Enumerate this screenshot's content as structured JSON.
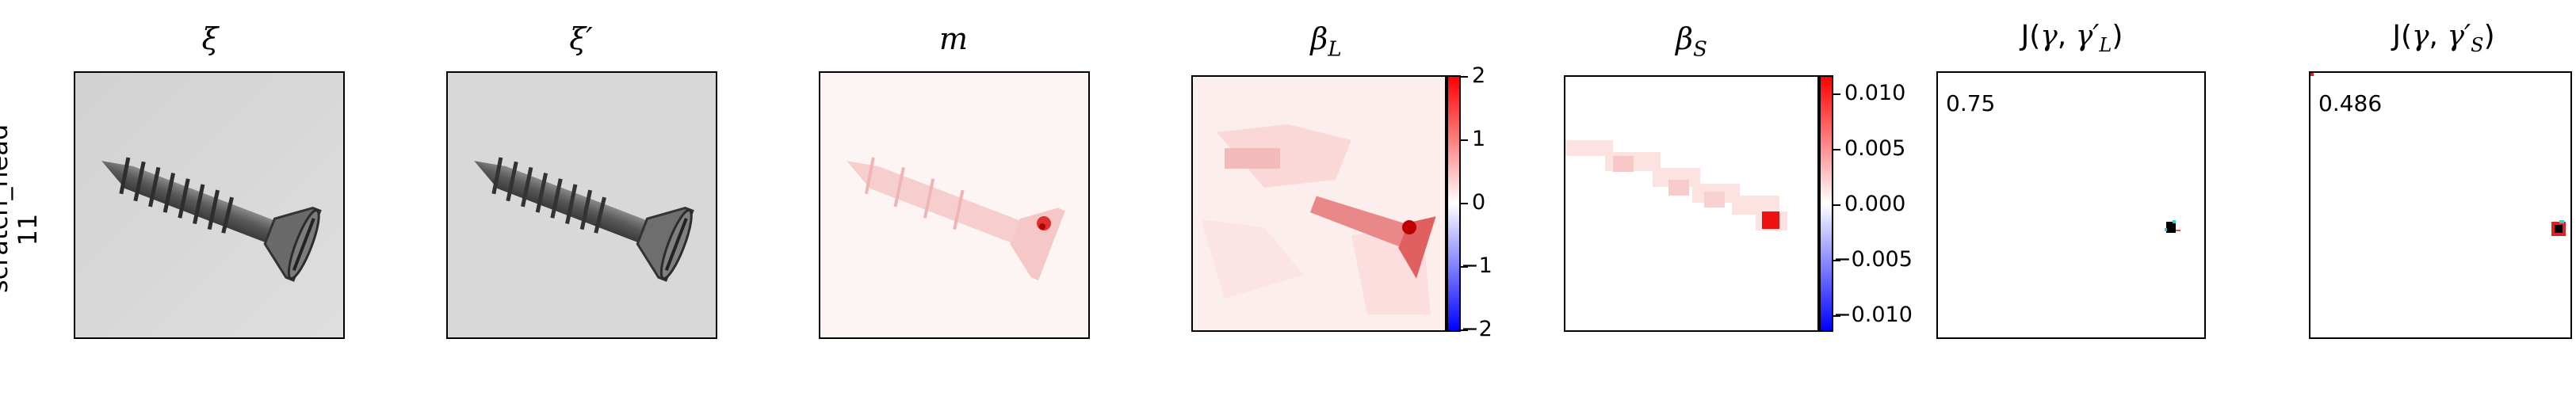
{
  "row_label": {
    "line1": "scratch_head",
    "line2": "11"
  },
  "panels": [
    {
      "title": "ξ"
    },
    {
      "title": "ξ′"
    },
    {
      "title": "m"
    },
    {
      "title": "β",
      "sub": "L",
      "colorbar": {
        "ticks": [
          "2",
          "1",
          "0",
          "−1",
          "−2"
        ],
        "max_color": "#ff0000",
        "min_color": "#0000ff"
      }
    },
    {
      "title": "β",
      "sub": "S",
      "colorbar": {
        "ticks": [
          "0.010",
          "0.005",
          "0.000",
          "−0.005",
          "−0.010"
        ],
        "max_color": "#ff0000",
        "min_color": "#0000ff"
      }
    },
    {
      "title_pre": "J(",
      "title_gamma": "γ",
      "title_sep": ", ",
      "title_gp": "γ′",
      "sub": "L",
      "title_post": ")",
      "score": "0.75"
    },
    {
      "title_pre": "J(",
      "title_gamma": "γ",
      "title_sep": ", ",
      "title_gp": "γ′",
      "sub": "S",
      "title_post": ")",
      "score": "0.486"
    }
  ]
}
